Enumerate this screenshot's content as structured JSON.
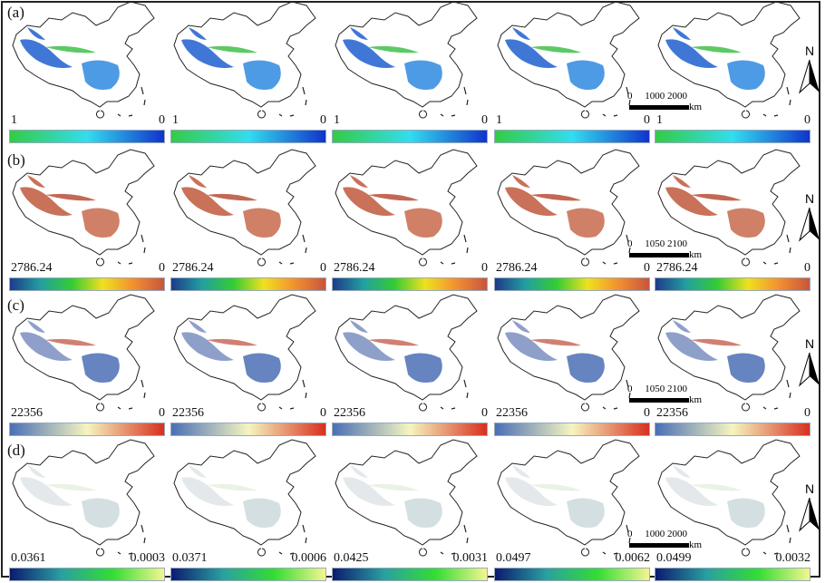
{
  "rows": [
    {
      "label": "(a)",
      "map_colors": [
        "#1f5fd0",
        "#2f8ae0",
        "#3fc04a"
      ],
      "gradient": [
        "#33cc44",
        "#33ddee",
        "#1133cc"
      ],
      "scale": [
        "0",
        "1000",
        "2000"
      ],
      "cells": [
        [
          "1",
          "0"
        ],
        [
          "1",
          "0"
        ],
        [
          "1",
          "0"
        ],
        [
          "1",
          "0"
        ],
        [
          "1",
          "0"
        ]
      ]
    },
    {
      "label": "(b)",
      "map_colors": [
        "#c0583c",
        "#c86a4c",
        "#b84e36"
      ],
      "gradient": [
        "#1f3a8a",
        "#22a0a0",
        "#33cc33",
        "#f0e020",
        "#f29030",
        "#c8553d"
      ],
      "scale": [
        "0",
        "1050",
        "2100"
      ],
      "cells": [
        [
          "2786.24",
          "0"
        ],
        [
          "2786.24",
          "0"
        ],
        [
          "2786.24",
          "0"
        ],
        [
          "2786.24",
          "0"
        ],
        [
          "2786.24",
          "0"
        ]
      ]
    },
    {
      "label": "(c)",
      "map_colors": [
        "#7a8fc0",
        "#4a6fb5",
        "#c86a5a"
      ],
      "gradient": [
        "#4a6fb5",
        "#f5f5c0",
        "#d7301f"
      ],
      "scale": [
        "0",
        "1050",
        "2100"
      ],
      "cells": [
        [
          "22356",
          "0"
        ],
        [
          "22356",
          "0"
        ],
        [
          "22356",
          "0"
        ],
        [
          "22356",
          "0"
        ],
        [
          "22356",
          "0"
        ]
      ]
    },
    {
      "label": "(d)",
      "map_colors": [
        "#c7d4d8",
        "#a9bfc6",
        "#d6e6c8"
      ],
      "gradient": [
        "#0c1a70",
        "#2aa0a0",
        "#33dd33",
        "#f5f590"
      ],
      "scale": [
        "0",
        "1000",
        "2000"
      ],
      "cells": [
        [
          "0.0361",
          "0.0003"
        ],
        [
          "0.0371",
          "0.0006"
        ],
        [
          "0.0425",
          "0.0031"
        ],
        [
          "0.0497",
          "0.0062"
        ],
        [
          "0.0499",
          "0.0032"
        ]
      ]
    }
  ],
  "north_label": "N",
  "scale_unit": "km"
}
